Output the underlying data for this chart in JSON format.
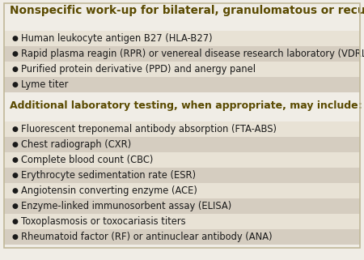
{
  "title": "Nonspecific work-up for bilateral, granulomatous or recurrent anterior uveitis",
  "title_color": "#5a4a00",
  "title_fontsize": 9.8,
  "section1_items": [
    "Human leukocyte antigen B27 (HLA-B27)",
    "Rapid plasma reagin (RPR) or venereal disease research laboratory (VDRL)",
    "Purified protein derivative (PPD) and anergy panel",
    "Lyme titer"
  ],
  "section2_header": "Additional laboratory testing, when appropriate, may include:",
  "section2_header_color": "#5a4a00",
  "section2_header_fontsize": 9.0,
  "section2_items": [
    "Fluorescent treponemal antibody absorption (FTA-ABS)",
    "Chest radiograph (CXR)",
    "Complete blood count (CBC)",
    "Erythrocyte sedimentation rate (ESR)",
    "Angiotensin converting enzyme (ACE)",
    "Enzyme-linked immunosorbent assay (ELISA)",
    "Toxoplasmosis or toxocariasis titers",
    "Rheumatoid factor (RF) or antinuclear antibody (ANA)"
  ],
  "row_color_light": "#e8e2d5",
  "row_color_dark": "#d5cdc0",
  "bg_color": "#f0ede6",
  "text_color": "#1a1a1a",
  "bullet_color": "#1a1a1a",
  "item_fontsize": 8.3,
  "border_color": "#c0b898",
  "title_bg": "#f0ede6",
  "section2_bg": "#f0ede6"
}
